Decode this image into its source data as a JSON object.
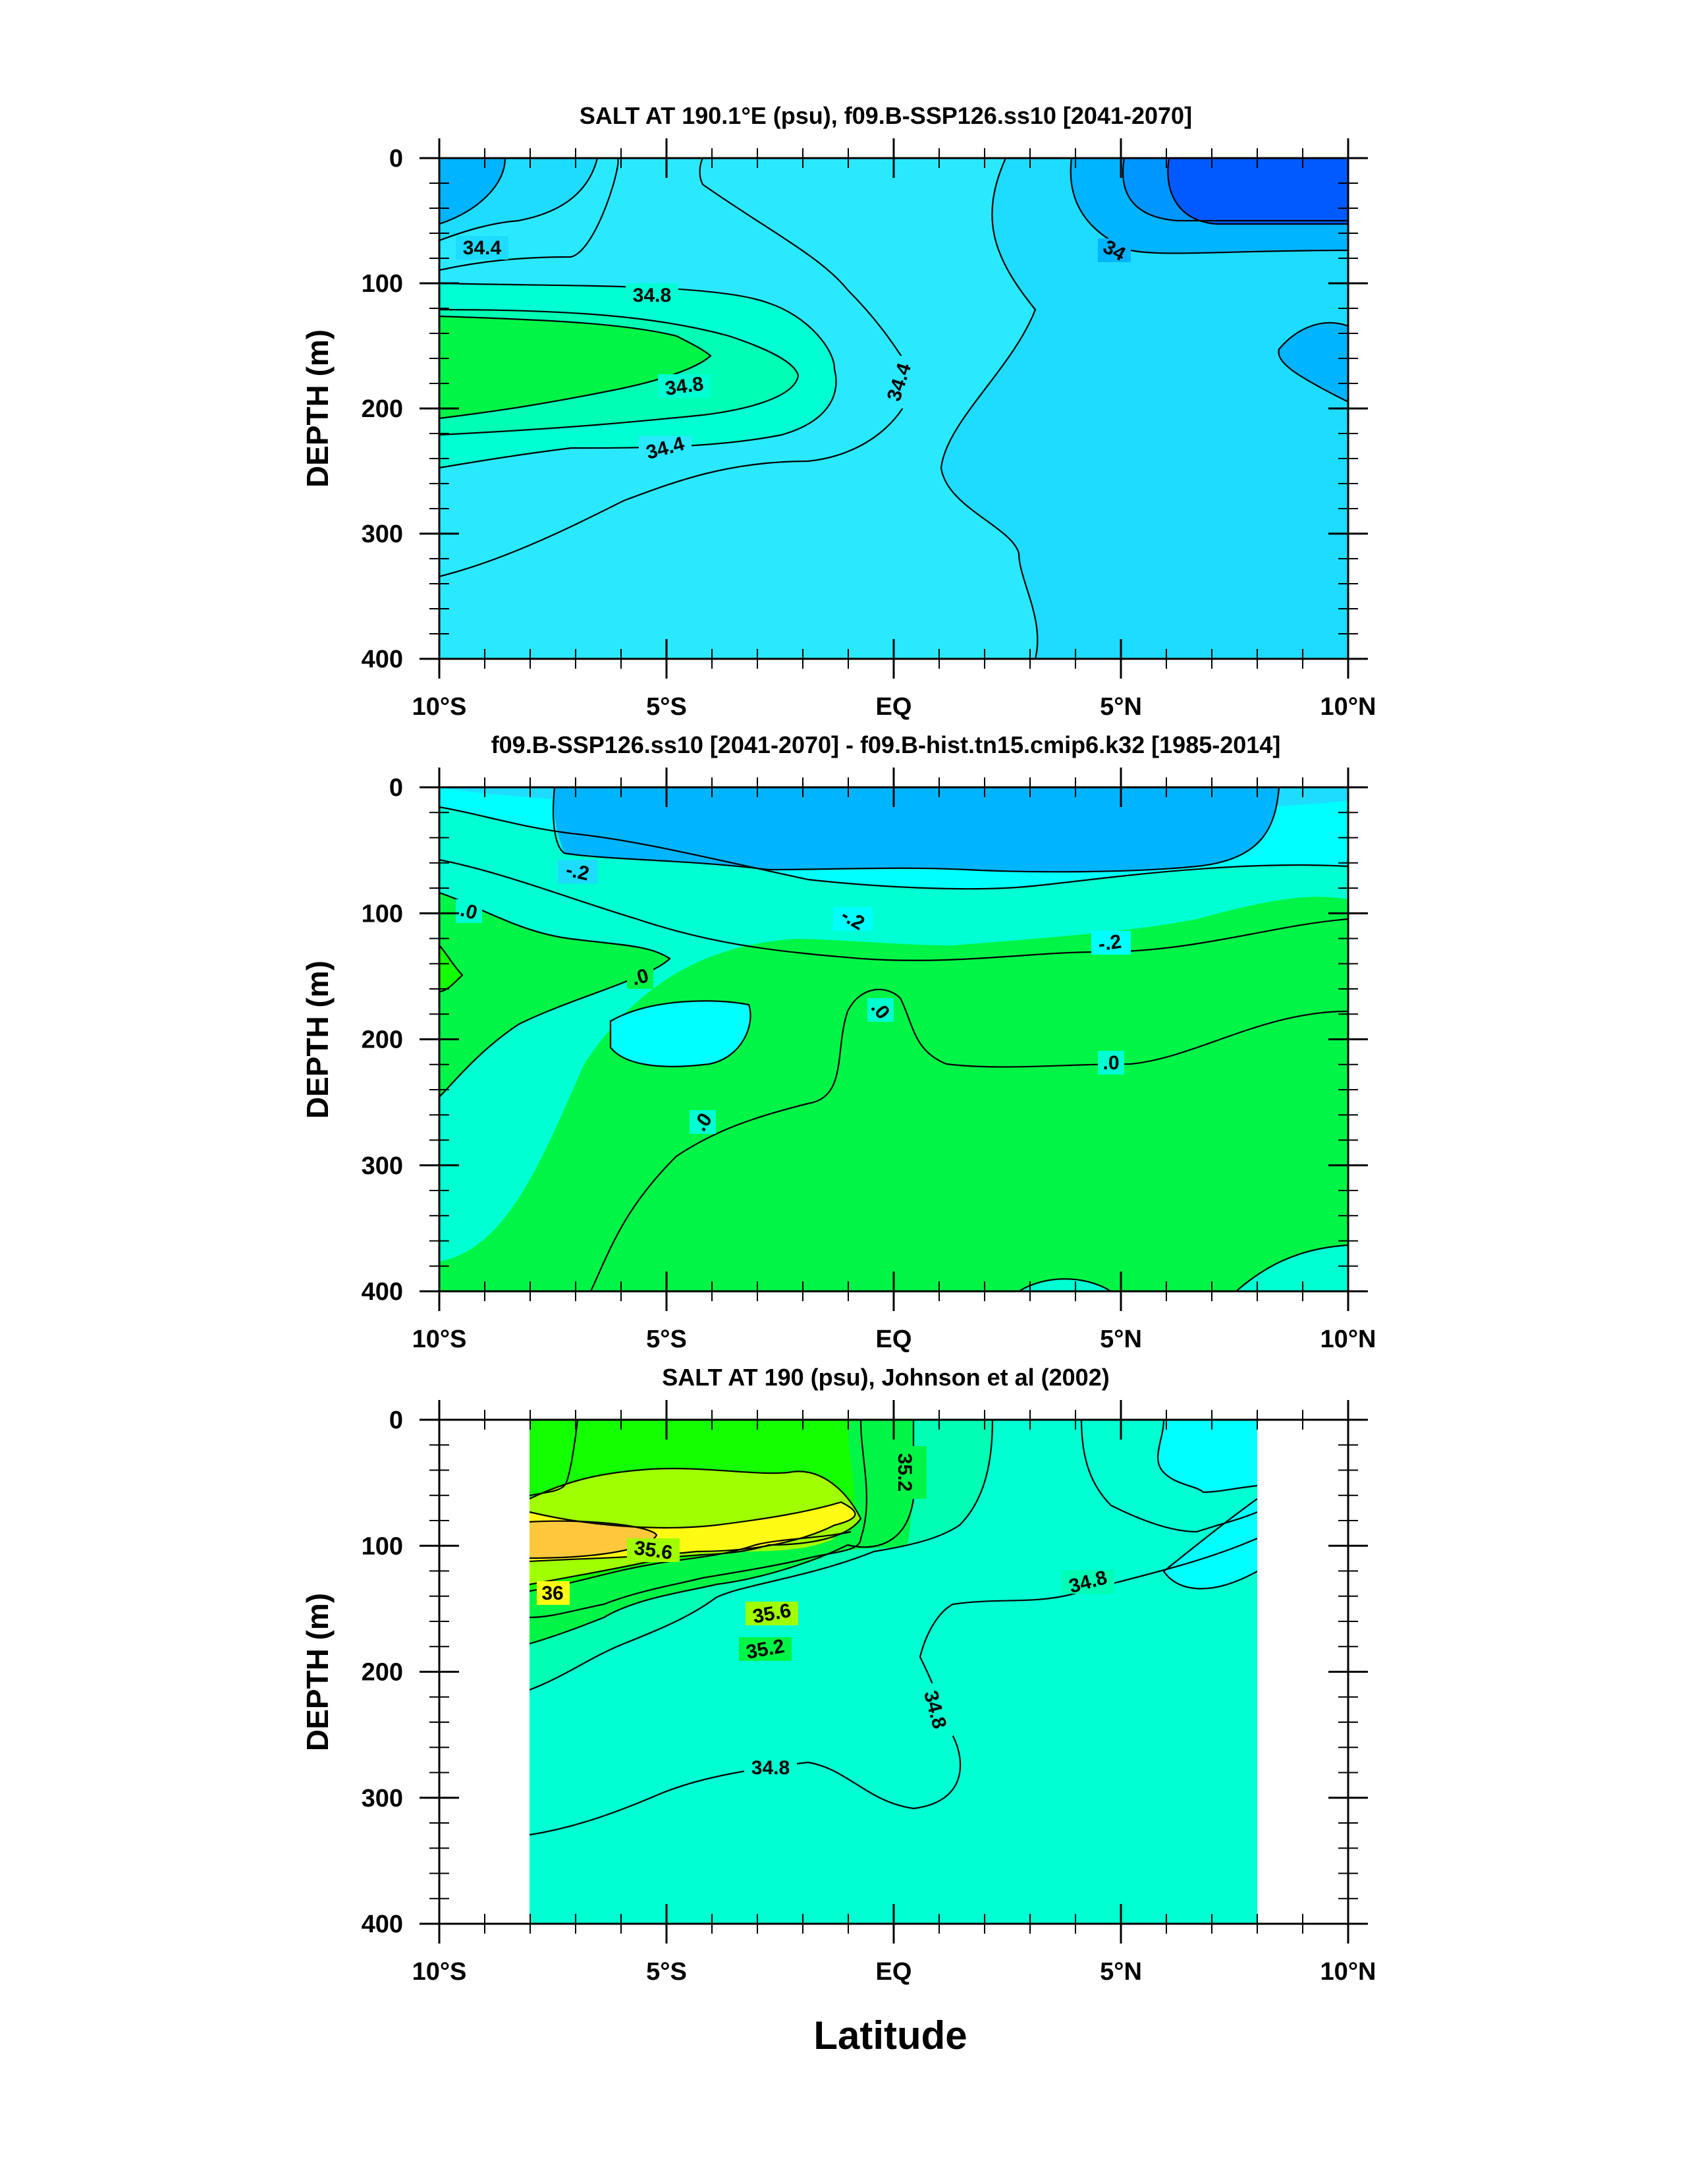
{
  "palette": {
    "deep_blue": "#005aff",
    "blue": "#0096ff",
    "mid_blue": "#00b4ff",
    "light_blue": "#1edcff",
    "cyan": "#2ae9ff",
    "cyan_bright": "#00ffff",
    "aqua": "#00ffd2",
    "aquamarine": "#00ffb4",
    "green": "#00f546",
    "bright_green": "#14ff00",
    "yellow_green": "#a0ff00",
    "yellow": "#fffa14",
    "orange": "#ffc83c"
  },
  "chart_data": [
    {
      "type": "contour",
      "title": "SALT AT 190.1°E (psu), f09.B-SSP126.ss10 [2041-2070]",
      "ylabel": "DEPTH (m)",
      "ylim": [
        400,
        0
      ],
      "xlim": [
        -10,
        10
      ],
      "yticks": [
        0,
        100,
        200,
        300,
        400
      ],
      "ytick_labels": [
        "0",
        "100",
        "200",
        "300",
        "400"
      ],
      "xtick_labels": [
        "10°S",
        "5°S",
        "EQ",
        "5°N",
        "10°N"
      ],
      "contour_labels": [
        "34.4",
        "34.8",
        "34.8",
        "34.4",
        "34.4",
        "34"
      ]
    },
    {
      "type": "contour",
      "title": "f09.B-SSP126.ss10 [2041-2070] - f09.B-hist.tn15.cmip6.k32 [1985-2014]",
      "ylabel": "DEPTH (m)",
      "ylim": [
        400,
        0
      ],
      "xlim": [
        -10,
        10
      ],
      "yticks": [
        0,
        100,
        200,
        300,
        400
      ],
      "ytick_labels": [
        "0",
        "100",
        "200",
        "300",
        "400"
      ],
      "xtick_labels": [
        "10°S",
        "5°S",
        "EQ",
        "5°N",
        "10°N"
      ],
      "contour_labels": [
        "-.2",
        "-.2",
        "-.2",
        ".0",
        ".0",
        ".0",
        ".0",
        ".0"
      ]
    },
    {
      "type": "contour",
      "title": "SALT AT 190 (psu), Johnson et al (2002)",
      "ylabel": "DEPTH (m)",
      "xlabel": "Latitude",
      "ylim": [
        400,
        0
      ],
      "xlim": [
        -10,
        10
      ],
      "data_extent_lat": [
        -8,
        8
      ],
      "data_extent_depth": [
        0,
        400
      ],
      "yticks": [
        0,
        100,
        200,
        300,
        400
      ],
      "ytick_labels": [
        "0",
        "100",
        "200",
        "300",
        "400"
      ],
      "xtick_labels": [
        "10°S",
        "5°S",
        "EQ",
        "5°N",
        "10°N"
      ],
      "contour_labels": [
        "35.2",
        "35.6",
        "36",
        "35.6",
        "35.2",
        "34.8",
        "34.8",
        "34.8"
      ]
    }
  ]
}
